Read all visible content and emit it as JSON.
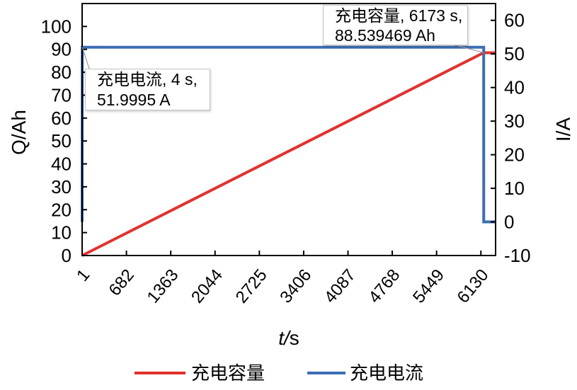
{
  "chart_data": {
    "type": "line",
    "title": "",
    "xlabel": "t/s",
    "ylabel": "Q/Ah",
    "ylabel_right": "I/A",
    "xlim": [
      1,
      6356
    ],
    "xticks": [
      1,
      682,
      1363,
      2044,
      2725,
      3406,
      4087,
      4768,
      5449,
      6130
    ],
    "ylim": [
      0,
      110
    ],
    "yticks": [
      0,
      10,
      20,
      30,
      40,
      50,
      60,
      70,
      80,
      90,
      100
    ],
    "ylim_right": [
      -10,
      65
    ],
    "yticks_right": [
      -10,
      0,
      10,
      20,
      30,
      40,
      50,
      60
    ],
    "grid": false,
    "legend": {
      "position": "bottom"
    },
    "series": [
      {
        "name": "充电容量",
        "axis": "left",
        "color": "#e4302d",
        "x": [
          1,
          6173,
          6356
        ],
        "y": [
          0,
          88.539469,
          88.539469
        ]
      },
      {
        "name": "充电电流",
        "axis": "right",
        "color": "#3b6db4",
        "x": [
          1,
          4,
          6173,
          6174,
          6356
        ],
        "y": [
          0,
          51.9995,
          51.9995,
          0,
          0
        ]
      }
    ],
    "data_tips": [
      {
        "series": "充电电流",
        "x": 4,
        "y": 51.9995,
        "line1": "充电电流, 4 s,",
        "line2": "51.9995 A"
      },
      {
        "series": "充电容量",
        "x": 6173,
        "y": 88.539469,
        "line1": "充电容量, 6173 s,",
        "line2": "88.539469 Ah"
      }
    ]
  }
}
